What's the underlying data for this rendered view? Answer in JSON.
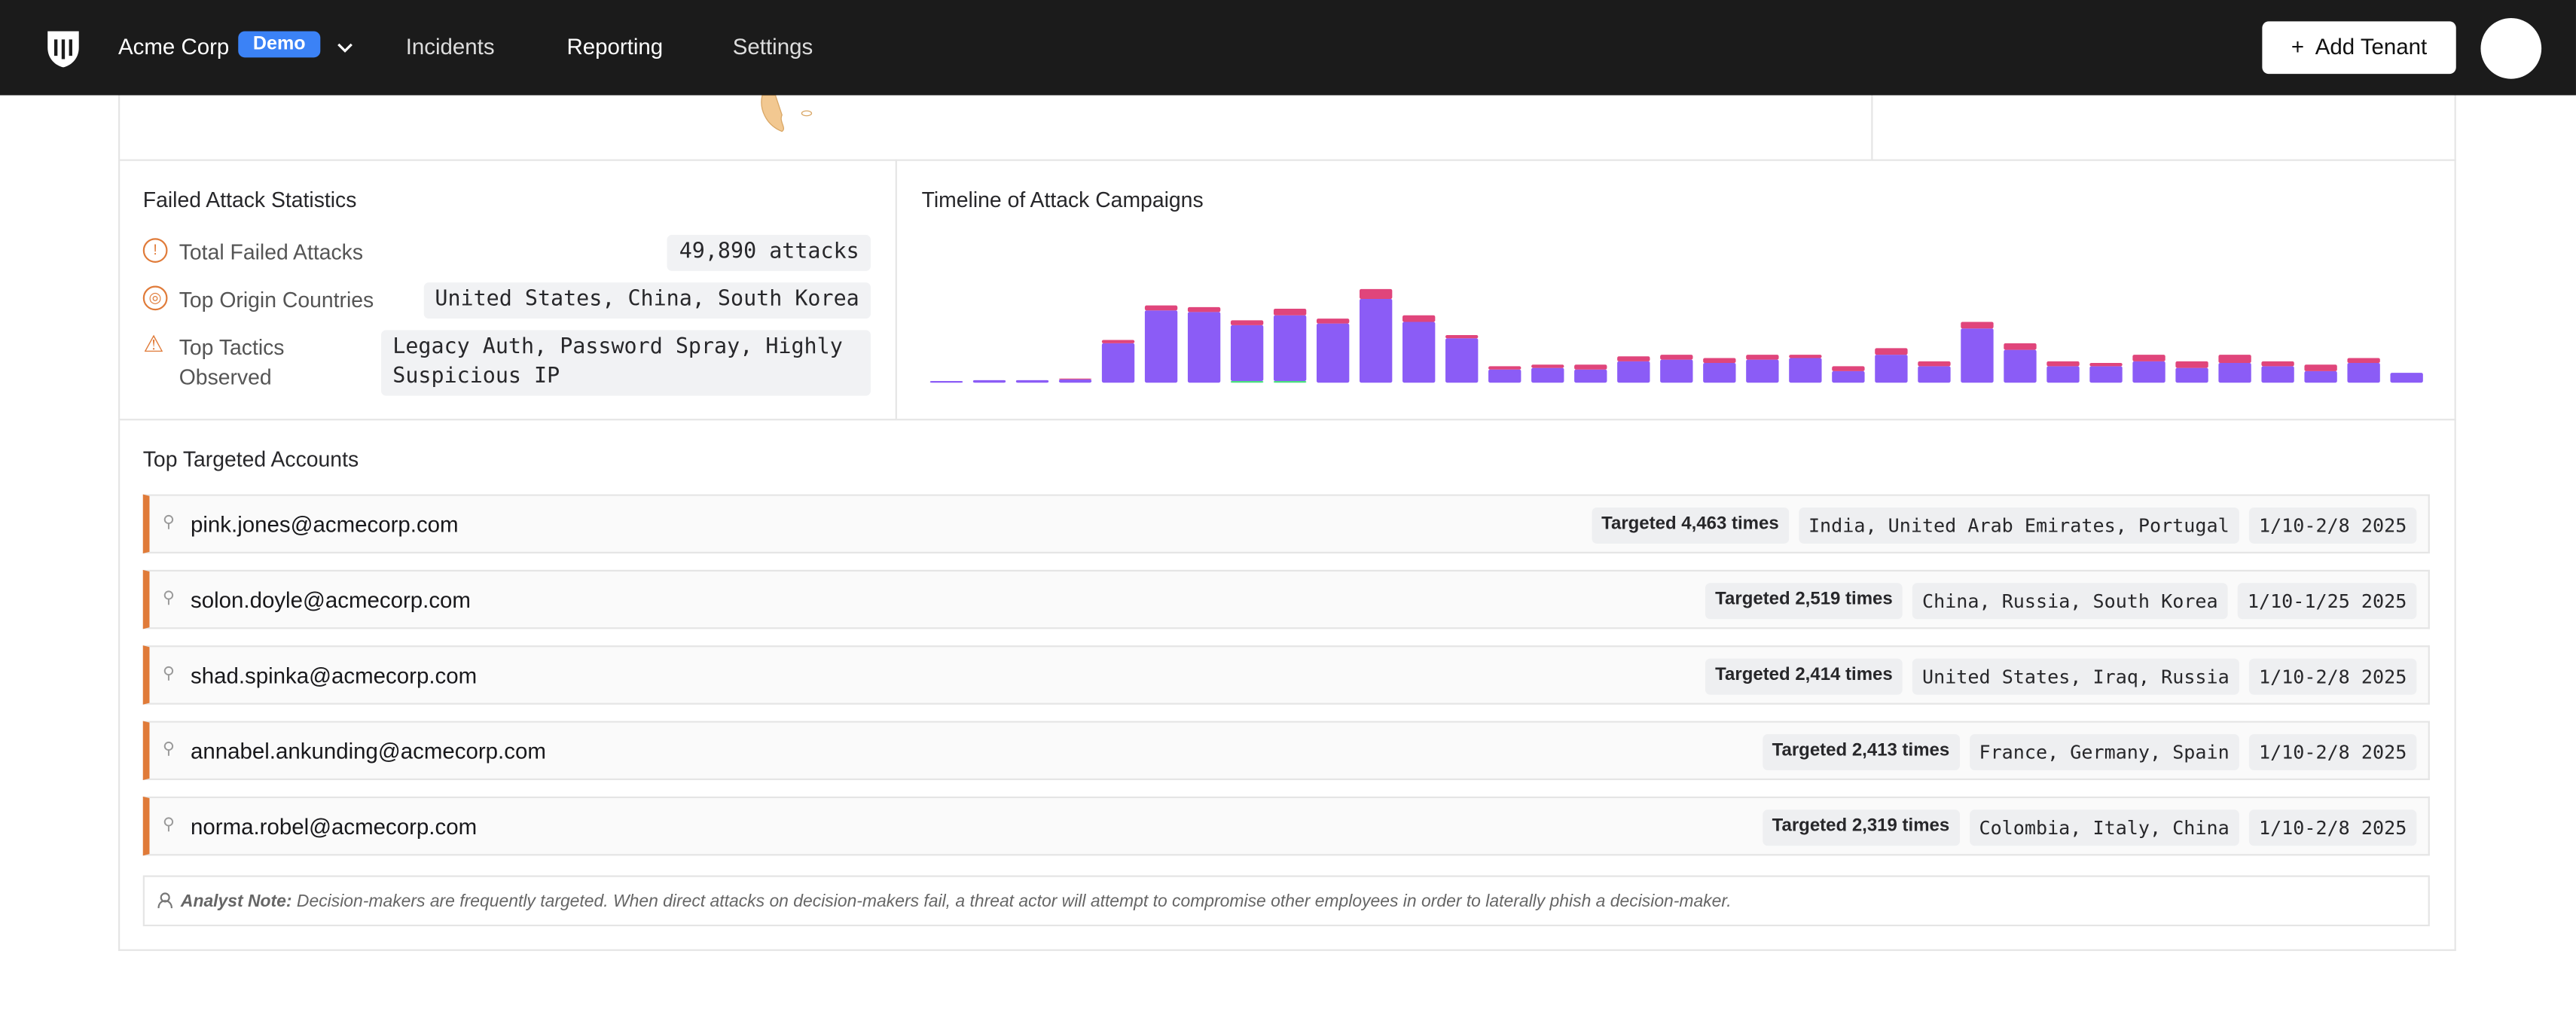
{
  "nav": {
    "brand": "Acme Corp",
    "badge": "Demo",
    "links": [
      "Incidents",
      "Reporting",
      "Settings"
    ],
    "button": "Add Tenant"
  },
  "stats": {
    "title": "Failed Attack Statistics",
    "items": [
      {
        "label": "Total Failed Attacks",
        "value": "49,890 attacks"
      },
      {
        "label": "Top Origin Countries",
        "value": "United States, China, South Korea"
      },
      {
        "label": "Top Tactics Observed",
        "value": "Legacy Auth, Password Spray, Highly Suspicious IP"
      }
    ]
  },
  "chart_data": {
    "type": "bar",
    "stacked": true,
    "title": "Timeline of Attack Campaigns",
    "ylim": [
      0,
      60
    ],
    "series": [
      {
        "color": "#4ade80",
        "values": [
          0,
          0,
          0,
          0,
          0,
          0,
          0,
          1,
          1,
          0,
          0,
          0,
          0,
          0,
          0,
          0,
          0,
          0,
          0,
          0,
          0,
          0,
          0,
          0,
          0,
          0,
          0,
          0,
          0,
          0,
          0,
          0,
          0,
          0,
          0
        ]
      },
      {
        "color": "#8b5cf6",
        "values": [
          1,
          1.5,
          1.5,
          2,
          24,
          44,
          43,
          34,
          40,
          36,
          51,
          37,
          27,
          8,
          9,
          8,
          13,
          14,
          12,
          14,
          15,
          7,
          17,
          10,
          33,
          20,
          10,
          10,
          13,
          9,
          12,
          10,
          7,
          12,
          6
        ]
      },
      {
        "color": "#e0457b",
        "values": [
          0,
          0,
          0,
          0.5,
          2,
          3,
          3,
          3,
          4,
          3,
          6,
          4,
          2,
          2,
          2,
          3,
          3,
          3,
          3,
          3,
          2,
          3,
          4,
          3,
          4,
          4,
          3,
          2,
          4,
          4,
          5,
          3,
          4,
          3,
          0
        ]
      }
    ]
  },
  "accounts": {
    "title": "Top Targeted Accounts",
    "list": [
      {
        "email": "pink.jones@acmecorp.com",
        "targeted": "Targeted 4,463 times",
        "countries": "India, United Arab Emirates, Portugal",
        "dates": "1/10-2/8 2025"
      },
      {
        "email": "solon.doyle@acmecorp.com",
        "targeted": "Targeted 2,519 times",
        "countries": "China, Russia, South Korea",
        "dates": "1/10-1/25 2025"
      },
      {
        "email": "shad.spinka@acmecorp.com",
        "targeted": "Targeted 2,414 times",
        "countries": "United States, Iraq, Russia",
        "dates": "1/10-2/8 2025"
      },
      {
        "email": "annabel.ankunding@acmecorp.com",
        "targeted": "Targeted 2,413 times",
        "countries": "France, Germany, Spain",
        "dates": "1/10-2/8 2025"
      },
      {
        "email": "norma.robel@acmecorp.com",
        "targeted": "Targeted 2,319 times",
        "countries": "Colombia, Italy, China",
        "dates": "1/10-2/8 2025"
      }
    ],
    "note": {
      "label": "Analyst Note:",
      "text": "Decision-makers are frequently targeted. When direct attacks on decision-makers fail, a threat actor will attempt to compromise other employees in order to laterally phish a decision-maker."
    }
  }
}
